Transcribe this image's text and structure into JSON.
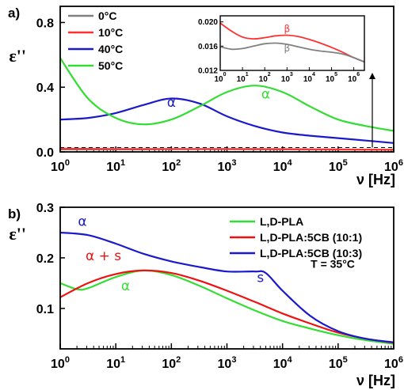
{
  "chart_data": [
    {
      "type": "line",
      "panel_label": "a)",
      "ylabel": "ε''",
      "xlabel": "ν [Hz]",
      "x_scale": "log",
      "xlim": [
        1,
        1000000
      ],
      "ylim": [
        0,
        0.9
      ],
      "x_ticks": [
        {
          "base": "10",
          "exp": "0"
        },
        {
          "base": "10",
          "exp": "1"
        },
        {
          "base": "10",
          "exp": "2"
        },
        {
          "base": "10",
          "exp": "3"
        },
        {
          "base": "10",
          "exp": "4"
        },
        {
          "base": "10",
          "exp": "5"
        },
        {
          "base": "10",
          "exp": "6"
        }
      ],
      "y_ticks": [
        "0.0",
        "0.4",
        "0.8"
      ],
      "legend_position": "top-left",
      "series": [
        {
          "name": "0°C",
          "color": "#808080",
          "x": [
            1,
            10,
            100,
            1000,
            10000,
            100000,
            1000000
          ],
          "y": [
            0.015,
            0.015,
            0.016,
            0.016,
            0.015,
            0.014,
            0.013
          ]
        },
        {
          "name": "10°C",
          "color": "#ff3030",
          "x": [
            1,
            10,
            100,
            1000,
            10000,
            100000,
            1000000
          ],
          "y": [
            0.02,
            0.018,
            0.018,
            0.018,
            0.017,
            0.015,
            0.013
          ]
        },
        {
          "name": "40°C",
          "color": "#1a1acc",
          "x": [
            1,
            3.16,
            10,
            31.6,
            100,
            316,
            1000,
            3162,
            10000,
            31623,
            100000,
            316228,
            1000000
          ],
          "y": [
            0.2,
            0.21,
            0.24,
            0.29,
            0.33,
            0.3,
            0.22,
            0.16,
            0.12,
            0.1,
            0.085,
            0.07,
            0.055
          ]
        },
        {
          "name": "50°C",
          "color": "#33dd33",
          "x": [
            1,
            3.16,
            10,
            31.6,
            100,
            316,
            1000,
            3162,
            10000,
            31623,
            100000,
            316228,
            1000000
          ],
          "y": [
            0.58,
            0.33,
            0.21,
            0.17,
            0.2,
            0.28,
            0.37,
            0.41,
            0.37,
            0.28,
            0.2,
            0.16,
            0.13
          ]
        }
      ],
      "annotations": [
        {
          "text": "α",
          "color": "#1a1acc",
          "x": 100,
          "y": 0.28
        },
        {
          "text": "α",
          "color": "#33dd33",
          "x": 5000,
          "y": 0.33
        }
      ],
      "reference_line": {
        "style": "dashed",
        "y": 0.027
      },
      "inset": {
        "x_scale": "log",
        "xlim": [
          1,
          3000000
        ],
        "ylim": [
          0.012,
          0.021
        ],
        "y_ticks": [
          "0.012",
          "0.016",
          "0.020"
        ],
        "x_ticks": [
          {
            "base": "10",
            "exp": "0"
          },
          {
            "base": "10",
            "exp": "1"
          },
          {
            "base": "10",
            "exp": "2"
          },
          {
            "base": "10",
            "exp": "3"
          },
          {
            "base": "10",
            "exp": "4"
          },
          {
            "base": "10",
            "exp": "5"
          },
          {
            "base": "10",
            "exp": "6"
          }
        ],
        "series": [
          {
            "name": "10°C",
            "color": "#ff3030",
            "x": [
              1,
              3.16,
              10,
              31.6,
              100,
              316,
              1000,
              3162,
              10000,
              31623,
              100000,
              316228,
              1000000,
              3000000
            ],
            "y": [
              0.0198,
              0.0185,
              0.0175,
              0.0172,
              0.0174,
              0.0177,
              0.0178,
              0.0176,
              0.0171,
              0.0165,
              0.0158,
              0.015,
              0.0141,
              0.0134
            ]
          },
          {
            "name": "0°C",
            "color": "#808080",
            "x": [
              1,
              3.16,
              10,
              31.6,
              100,
              316,
              1000,
              3162,
              10000,
              31623,
              100000,
              316228,
              1000000,
              3000000
            ],
            "y": [
              0.0159,
              0.0155,
              0.0156,
              0.016,
              0.0164,
              0.0165,
              0.0163,
              0.0159,
              0.0155,
              0.0152,
              0.015,
              0.0147,
              0.0141,
              0.0134
            ]
          }
        ],
        "annotations": [
          {
            "text": "β",
            "color": "#ff3030",
            "x": 1000,
            "y": 0.0183
          },
          {
            "text": "β",
            "color": "#808080",
            "x": 1000,
            "y": 0.0151
          }
        ]
      }
    },
    {
      "type": "line",
      "panel_label": "b)",
      "ylabel": "ε''",
      "xlabel": "ν [Hz]",
      "x_scale": "log",
      "xlim": [
        1,
        1000000
      ],
      "ylim": [
        0.02,
        0.3
      ],
      "x_ticks": [
        {
          "base": "10",
          "exp": "0"
        },
        {
          "base": "10",
          "exp": "1"
        },
        {
          "base": "10",
          "exp": "2"
        },
        {
          "base": "10",
          "exp": "3"
        },
        {
          "base": "10",
          "exp": "4"
        },
        {
          "base": "10",
          "exp": "5"
        },
        {
          "base": "10",
          "exp": "6"
        }
      ],
      "y_ticks": [
        "0.1",
        "0.2",
        "0.3"
      ],
      "legend_position": "top-right",
      "series": [
        {
          "name": "L,D-PLA",
          "color": "#33dd33",
          "x": [
            1,
            2,
            3.16,
            10,
            31.6,
            100,
            316,
            1000,
            3162,
            10000,
            31623,
            100000,
            316228,
            1000000
          ],
          "y": [
            0.15,
            0.138,
            0.14,
            0.162,
            0.175,
            0.166,
            0.145,
            0.12,
            0.096,
            0.075,
            0.06,
            0.047,
            0.037,
            0.03
          ]
        },
        {
          "name": "L,D-PLA:5CB (10:1)",
          "color": "#ee1111",
          "x": [
            1,
            3.16,
            10,
            31.6,
            100,
            316,
            1000,
            3162,
            10000,
            31623,
            100000,
            316228,
            1000000
          ],
          "y": [
            0.122,
            0.15,
            0.168,
            0.175,
            0.17,
            0.155,
            0.135,
            0.113,
            0.09,
            0.07,
            0.052,
            0.04,
            0.032
          ]
        },
        {
          "name": "L,D-PLA:5CB (10:3)",
          "color": "#1a1acc",
          "x": [
            1,
            3.16,
            10,
            31.6,
            100,
            316,
            1000,
            3162,
            5000,
            10000,
            31623,
            100000,
            316228,
            1000000
          ],
          "y": [
            0.25,
            0.245,
            0.228,
            0.208,
            0.193,
            0.182,
            0.173,
            0.173,
            0.17,
            0.135,
            0.085,
            0.055,
            0.04,
            0.033
          ]
        }
      ],
      "annotations": [
        {
          "text": "α",
          "color": "#1a1acc",
          "x": 2.5,
          "y": 0.263
        },
        {
          "text": "α + s",
          "color": "#ee1111",
          "x": 6,
          "y": 0.195
        },
        {
          "text": "α",
          "color": "#33dd33",
          "x": 15,
          "y": 0.136
        },
        {
          "text": "s",
          "color": "#1a1acc",
          "x": 4000,
          "y": 0.152
        },
        {
          "text": "T = 35°C",
          "color": "#000000",
          "x": 80000,
          "y": 0.18
        }
      ]
    }
  ]
}
